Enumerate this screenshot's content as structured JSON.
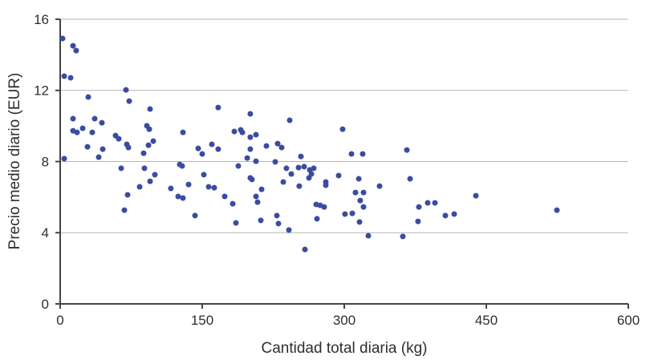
{
  "chart_data": {
    "type": "scatter",
    "title": "",
    "xlabel": "Cantidad total diaria (kg)",
    "ylabel": "Precio medio diario (EUR)",
    "xlim": [
      0,
      600
    ],
    "ylim": [
      0,
      16
    ],
    "xticks": [
      0,
      150,
      300,
      450,
      600
    ],
    "yticks": [
      0,
      4,
      8,
      12,
      16
    ],
    "grid": "horizontal-only",
    "legend": "none",
    "point_color": "#3b4ca0",
    "axis_color": "#444444",
    "gridline_color": "#b5b5b5",
    "text_color": "#2e2e2e",
    "points": [
      [
        2.5,
        14.92
      ],
      [
        13.6,
        14.51
      ],
      [
        16.9,
        14.24
      ],
      [
        4.2,
        12.8
      ],
      [
        11.0,
        12.71
      ],
      [
        29.7,
        11.63
      ],
      [
        69.5,
        12.03
      ],
      [
        72.9,
        11.4
      ],
      [
        94.9,
        10.95
      ],
      [
        13.6,
        10.41
      ],
      [
        36.4,
        10.41
      ],
      [
        44.1,
        10.18
      ],
      [
        23.7,
        9.87
      ],
      [
        13.6,
        9.73
      ],
      [
        17.8,
        9.64
      ],
      [
        33.9,
        9.64
      ],
      [
        91.5,
        10.01
      ],
      [
        94.1,
        9.82
      ],
      [
        58.5,
        9.46
      ],
      [
        61.9,
        9.28
      ],
      [
        70.3,
        8.97
      ],
      [
        72.0,
        8.79
      ],
      [
        28.8,
        8.83
      ],
      [
        44.9,
        8.7
      ],
      [
        40.7,
        8.25
      ],
      [
        4.2,
        8.16
      ],
      [
        98.3,
        9.15
      ],
      [
        93.2,
        8.92
      ],
      [
        88.1,
        8.47
      ],
      [
        64.4,
        7.62
      ],
      [
        89.0,
        7.62
      ],
      [
        100.0,
        7.26
      ],
      [
        94.9,
        6.89
      ],
      [
        83.9,
        6.58
      ],
      [
        71.2,
        6.13
      ],
      [
        67.8,
        5.27
      ],
      [
        116.9,
        6.49
      ],
      [
        135.6,
        6.71
      ],
      [
        126.3,
        7.84
      ],
      [
        128.8,
        7.75
      ],
      [
        124.6,
        6.04
      ],
      [
        129.7,
        5.95
      ],
      [
        129.7,
        9.64
      ],
      [
        142.4,
        4.96
      ],
      [
        145.8,
        8.74
      ],
      [
        150.0,
        8.43
      ],
      [
        151.7,
        7.26
      ],
      [
        156.8,
        6.58
      ],
      [
        162.7,
        6.53
      ],
      [
        160.2,
        8.97
      ],
      [
        166.9,
        8.7
      ],
      [
        166.9,
        11.04
      ],
      [
        173.7,
        6.04
      ],
      [
        182.2,
        5.63
      ],
      [
        185.6,
        4.55
      ],
      [
        183.9,
        9.69
      ],
      [
        190.7,
        9.78
      ],
      [
        192.4,
        9.64
      ],
      [
        188.1,
        7.75
      ],
      [
        197.5,
        8.2
      ],
      [
        200.8,
        10.68
      ],
      [
        200.8,
        9.37
      ],
      [
        206.8,
        9.51
      ],
      [
        200.8,
        8.7
      ],
      [
        206.8,
        8.02
      ],
      [
        200.8,
        7.08
      ],
      [
        202.5,
        6.99
      ],
      [
        206.8,
        6.04
      ],
      [
        208.5,
        5.72
      ],
      [
        211.9,
        4.69
      ],
      [
        212.7,
        6.44
      ],
      [
        217.8,
        8.88
      ],
      [
        227.1,
        7.98
      ],
      [
        229.7,
        9.01
      ],
      [
        233.9,
        8.79
      ],
      [
        228.8,
        4.96
      ],
      [
        230.5,
        4.51
      ],
      [
        235.6,
        6.85
      ],
      [
        238.9,
        7.62
      ],
      [
        244.1,
        7.3
      ],
      [
        241.5,
        4.15
      ],
      [
        242.4,
        10.32
      ],
      [
        251.7,
        7.66
      ],
      [
        257.6,
        7.71
      ],
      [
        254.2,
        8.29
      ],
      [
        252.5,
        6.62
      ],
      [
        258.5,
        3.06
      ],
      [
        263.6,
        7.53
      ],
      [
        267.8,
        7.62
      ],
      [
        265.3,
        7.3
      ],
      [
        262.7,
        7.08
      ],
      [
        270.3,
        5.59
      ],
      [
        274.6,
        5.54
      ],
      [
        278.8,
        5.45
      ],
      [
        271.2,
        4.78
      ],
      [
        280.5,
        6.85
      ],
      [
        280.5,
        6.67
      ],
      [
        294.1,
        7.21
      ],
      [
        298.3,
        9.82
      ],
      [
        300.8,
        5.05
      ],
      [
        308.5,
        5.09
      ],
      [
        307.6,
        8.43
      ],
      [
        319.5,
        8.43
      ],
      [
        311.9,
        6.26
      ],
      [
        320.3,
        6.26
      ],
      [
        315.3,
        7.03
      ],
      [
        316.9,
        5.81
      ],
      [
        320.3,
        5.45
      ],
      [
        316.1,
        4.6
      ],
      [
        325.4,
        3.83
      ],
      [
        337.3,
        6.62
      ],
      [
        369.5,
        7.03
      ],
      [
        366.1,
        8.65
      ],
      [
        361.9,
        3.79
      ],
      [
        378.8,
        5.45
      ],
      [
        388.1,
        5.68
      ],
      [
        377.9,
        4.64
      ],
      [
        395.8,
        5.68
      ],
      [
        406.8,
        4.96
      ],
      [
        416.1,
        5.05
      ],
      [
        439.0,
        6.08
      ],
      [
        524.6,
        5.27
      ]
    ]
  }
}
